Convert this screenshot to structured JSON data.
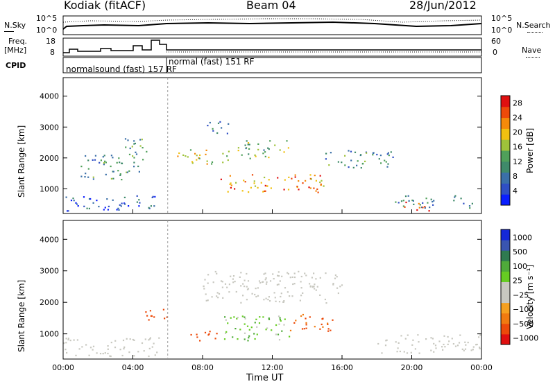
{
  "header": {
    "station": "Kodiak (fitACF)",
    "beam": "Beam 04",
    "date": "28/Jun/2012"
  },
  "strip_labels": {
    "nsky": "N.Sky",
    "freq_line1": "Freq.",
    "freq_line2": "[MHz]",
    "cpid": "CPID",
    "nsearch": "N.Search",
    "nave": "Nave",
    "nsky_ticks": [
      "10^5",
      "10^0"
    ],
    "nsearch_ticks": [
      "10^5",
      "10^0"
    ],
    "freq_ticks": [
      "18",
      "8"
    ],
    "nave_ticks": [
      "60",
      "0"
    ]
  },
  "cpid_programs": [
    {
      "name": "normalsound (fast) 157 RF",
      "start_hour": 0
    },
    {
      "name": "normal (fast) 151 RF",
      "start_hour": 6
    }
  ],
  "chart_data": [
    {
      "type": "heatmap",
      "ylabel": "Slant Range [km]",
      "xlabel": "Time UT",
      "x_ticks": [
        "00:00",
        "04:00",
        "08:00",
        "12:00",
        "16:00",
        "20:00",
        "00:00"
      ],
      "xlim_hours": [
        0,
        24
      ],
      "y_ticks": [
        1000,
        2000,
        3000,
        4000
      ],
      "ylim": [
        200,
        4600
      ],
      "colorbar": {
        "label": "Power [dB]",
        "ticks": [
          "4",
          "8",
          "12",
          "16",
          "20",
          "24",
          "28"
        ],
        "range": [
          0,
          30
        ],
        "colors": [
          "#0a1eff",
          "#2f4fc4",
          "#3a6fa8",
          "#3f8a6a",
          "#4fa05a",
          "#9fc23a",
          "#f0c010",
          "#f58a0a",
          "#ee4a0a",
          "#e01010"
        ]
      },
      "regions": [
        {
          "t0": 0.0,
          "t1": 5.5,
          "r0": 300,
          "r1": 800,
          "v": 6
        },
        {
          "t0": 1.0,
          "t1": 3.5,
          "r0": 1300,
          "r1": 2200,
          "v": 10
        },
        {
          "t0": 3.5,
          "t1": 4.8,
          "r0": 1500,
          "r1": 2700,
          "v": 12
        },
        {
          "t0": 6.5,
          "t1": 9.5,
          "r0": 1800,
          "r1": 2300,
          "v": 18
        },
        {
          "t0": 8.0,
          "t1": 9.5,
          "r0": 2800,
          "r1": 3200,
          "v": 7
        },
        {
          "t0": 9.0,
          "t1": 15.0,
          "r0": 900,
          "r1": 1500,
          "v": 22
        },
        {
          "t0": 10.0,
          "t1": 13.0,
          "r0": 2000,
          "r1": 2600,
          "v": 14
        },
        {
          "t0": 15.0,
          "t1": 19.0,
          "r0": 1700,
          "r1": 2300,
          "v": 10
        },
        {
          "t0": 19.0,
          "t1": 23.5,
          "r0": 400,
          "r1": 800,
          "v": 10
        },
        {
          "t0": 19.5,
          "t1": 21.0,
          "r0": 300,
          "r1": 600,
          "v": 26
        }
      ]
    },
    {
      "type": "heatmap",
      "ylabel": "Slant Range [km]",
      "xlabel": "Time UT",
      "x_ticks": [
        "00:00",
        "04:00",
        "08:00",
        "12:00",
        "16:00",
        "20:00",
        "00:00"
      ],
      "xlim_hours": [
        0,
        24
      ],
      "y_ticks": [
        1000,
        2000,
        3000,
        4000
      ],
      "ylim": [
        200,
        4600
      ],
      "colorbar": {
        "label": "Velocity [m s⁻¹]",
        "ticks": [
          "1000",
          "500",
          "100",
          "25",
          "−25",
          "−100",
          "−500",
          "−1000"
        ],
        "colors": [
          "#1428d8",
          "#3a55b0",
          "#2f7a50",
          "#4faa3a",
          "#66cc22",
          "#c8c8c0",
          "#c8c8c0",
          "#f5a020",
          "#f07a10",
          "#ec4a0a",
          "#e01010"
        ]
      },
      "regions": [
        {
          "t0": 0.0,
          "t1": 5.5,
          "r0": 300,
          "r1": 900,
          "v": 0
        },
        {
          "t0": 4.5,
          "t1": 6.0,
          "r0": 1400,
          "r1": 1800,
          "v": -200
        },
        {
          "t0": 7.0,
          "t1": 9.0,
          "r0": 800,
          "r1": 1100,
          "v": -150
        },
        {
          "t0": 9.0,
          "t1": 13.0,
          "r0": 800,
          "r1": 1600,
          "v": 80
        },
        {
          "t0": 13.0,
          "t1": 15.5,
          "r0": 1100,
          "r1": 1700,
          "v": -120
        },
        {
          "t0": 8.0,
          "t1": 16.0,
          "r0": 2000,
          "r1": 3000,
          "v": 0
        },
        {
          "t0": 18.0,
          "t1": 24.0,
          "r0": 400,
          "r1": 1000,
          "v": 0
        }
      ]
    }
  ]
}
